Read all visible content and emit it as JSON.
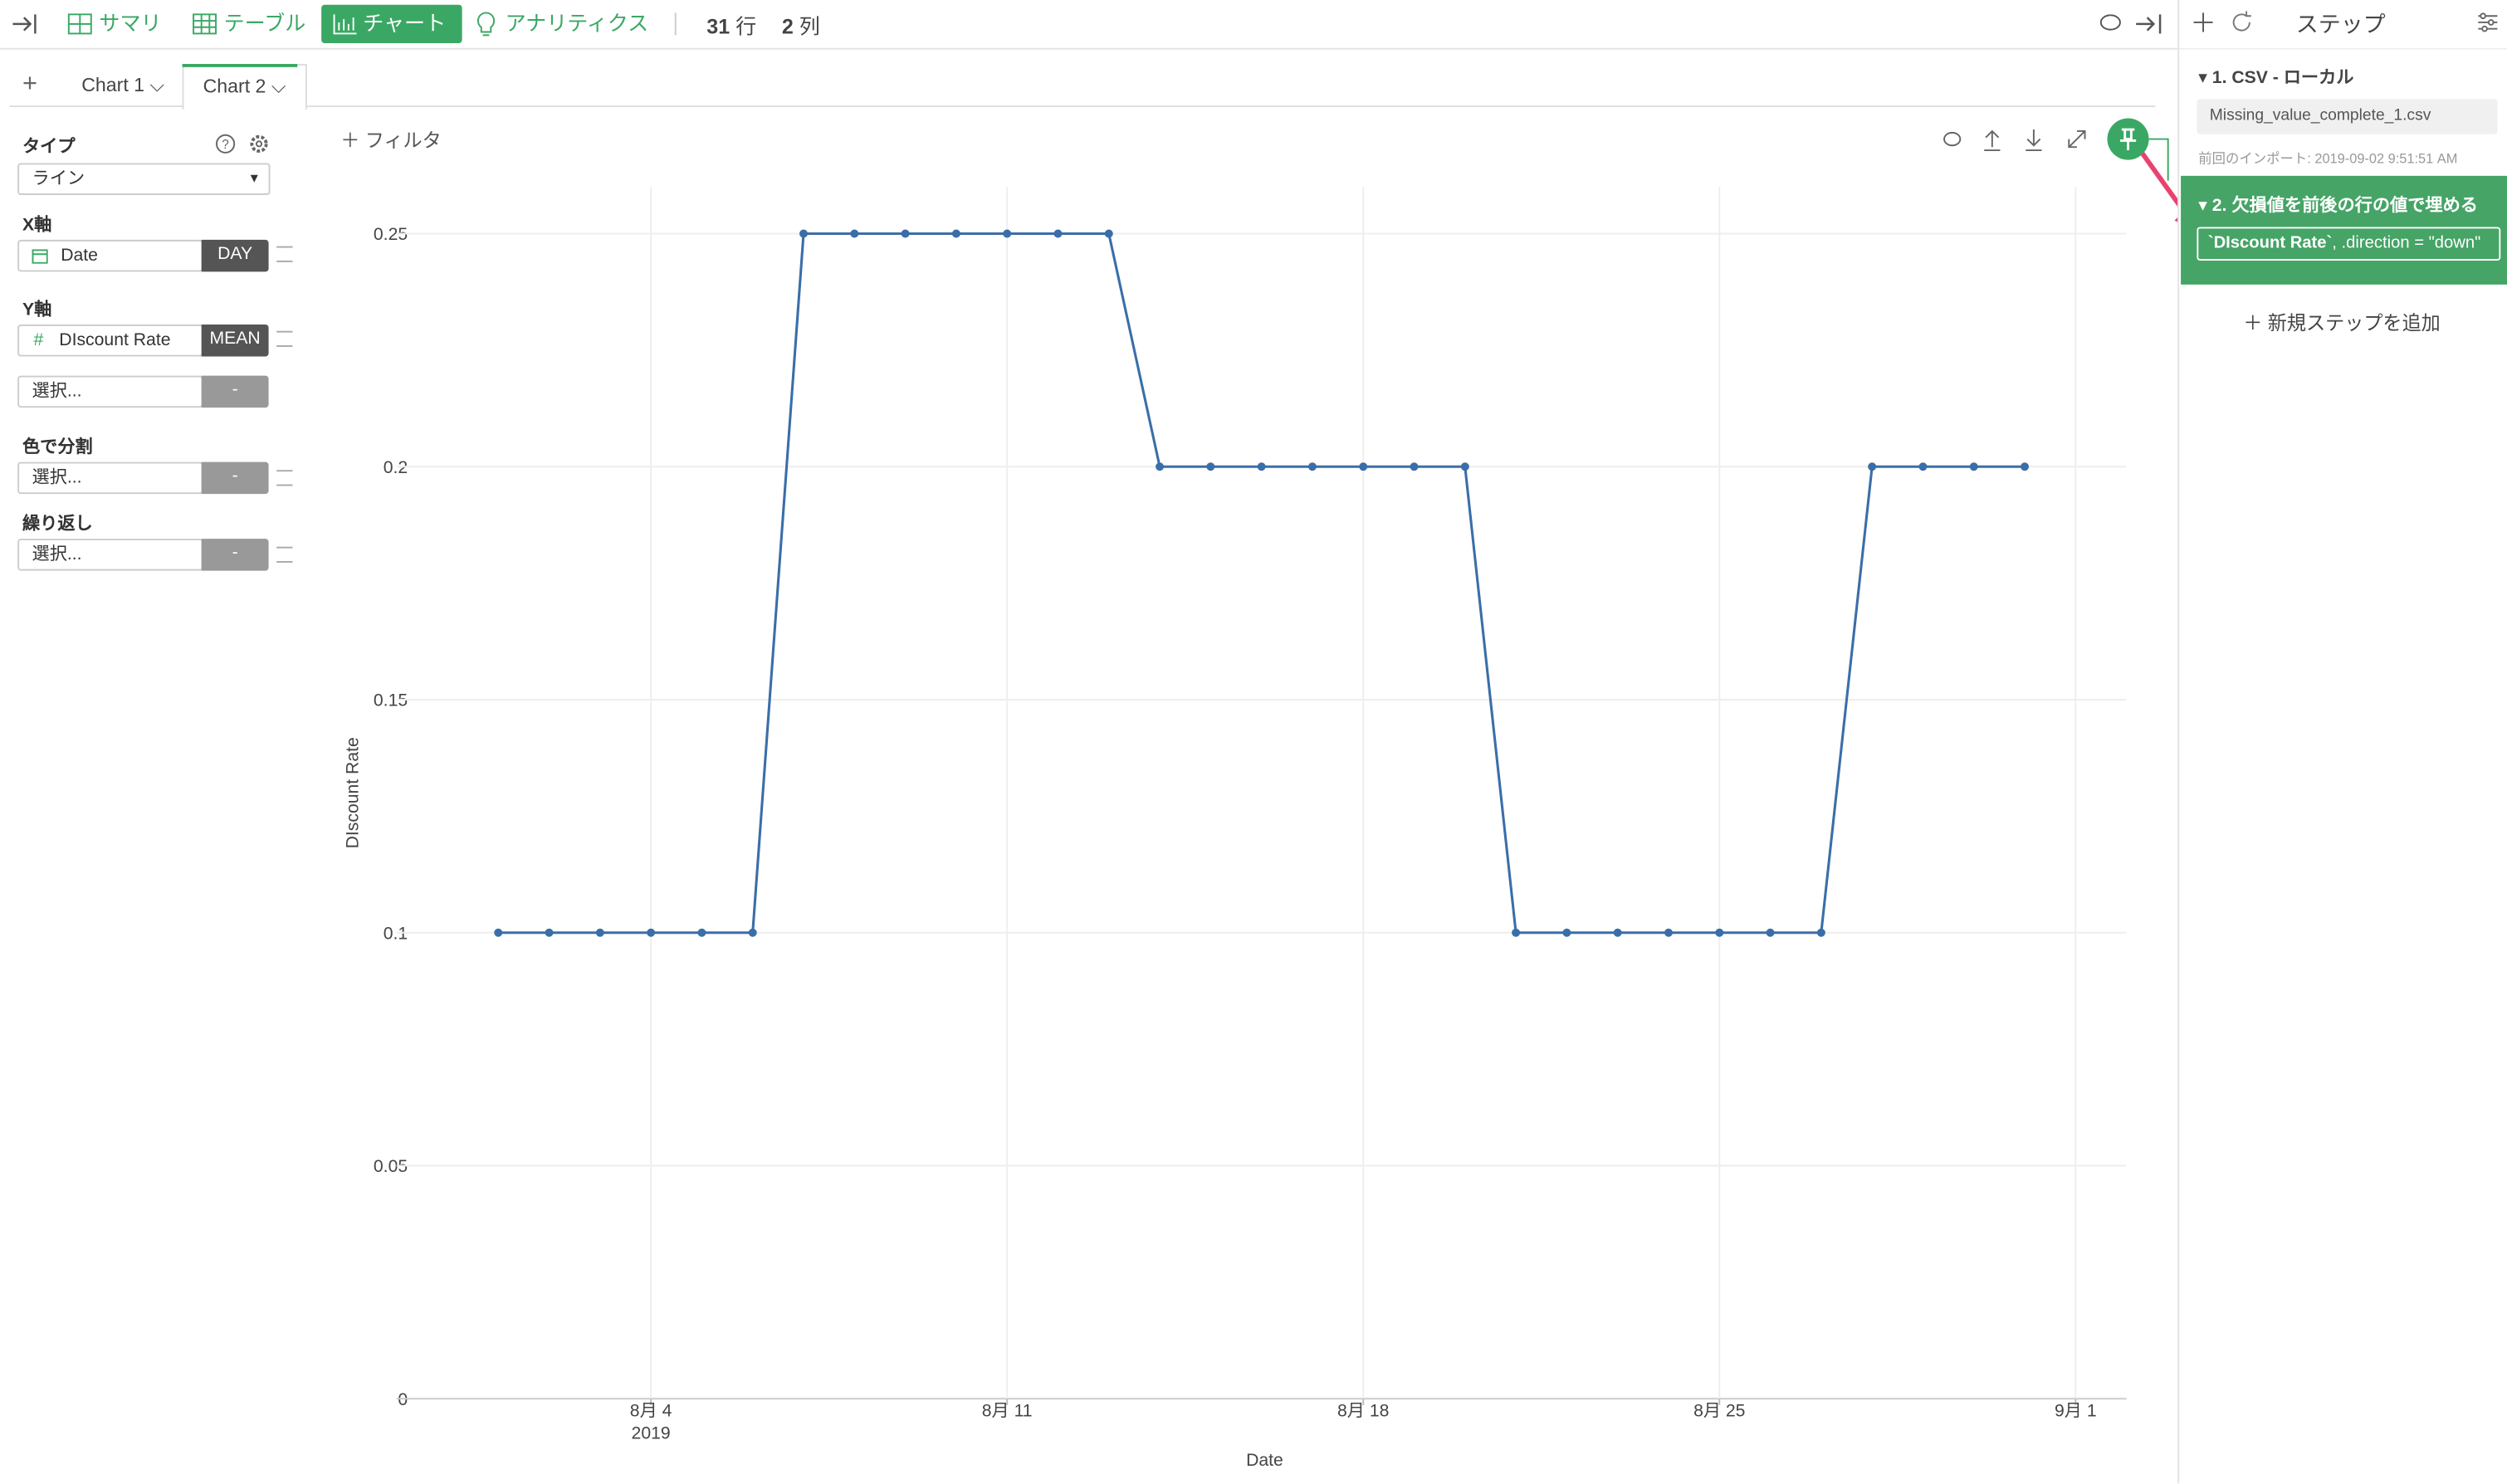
{
  "toolbar": {
    "tabs": [
      "サマリ",
      "テーブル",
      "チャート",
      "アナリティクス"
    ],
    "rows": 31,
    "rows_unit": "行",
    "cols": 2,
    "cols_unit": "列"
  },
  "chart_tabs": [
    "Chart 1",
    "Chart 2"
  ],
  "config": {
    "type_label": "タイプ",
    "type_value": "ライン",
    "x_label": "X軸",
    "x_field": "Date",
    "x_agg": "DAY",
    "y_label": "Y軸",
    "y_field": "DIscount Rate",
    "y_agg": "MEAN",
    "placeholder": "選択...",
    "dash": "-",
    "color_label": "色で分割",
    "repeat_label": "繰り返し"
  },
  "filter": "フィルタ",
  "chart_data": {
    "type": "line",
    "x_title": "Date",
    "y_title": "DIscount Rate",
    "x": [
      "2019-08-01",
      "2019-08-02",
      "2019-08-03",
      "2019-08-04",
      "2019-08-05",
      "2019-08-06",
      "2019-08-07",
      "2019-08-08",
      "2019-08-09",
      "2019-08-10",
      "2019-08-11",
      "2019-08-12",
      "2019-08-13",
      "2019-08-14",
      "2019-08-15",
      "2019-08-16",
      "2019-08-17",
      "2019-08-18",
      "2019-08-19",
      "2019-08-20",
      "2019-08-21",
      "2019-08-22",
      "2019-08-23",
      "2019-08-24",
      "2019-08-25",
      "2019-08-26",
      "2019-08-27",
      "2019-08-28",
      "2019-08-29",
      "2019-08-30",
      "2019-08-31"
    ],
    "series": [
      {
        "color": "#3a6ea8",
        "values": [
          0.1,
          0.1,
          0.1,
          0.1,
          0.1,
          0.1,
          0.25,
          0.25,
          0.25,
          0.25,
          0.25,
          0.25,
          0.25,
          0.2,
          0.2,
          0.2,
          0.2,
          0.2,
          0.2,
          0.2,
          0.1,
          0.1,
          0.1,
          0.1,
          0.1,
          0.1,
          0.1,
          0.2,
          0.2,
          0.2,
          0.2
        ]
      }
    ],
    "xlim": [
      "2019-07-30",
      "2019-09-02"
    ],
    "xticks": [
      {
        "value": "2019-08-04",
        "label": "8月 4"
      },
      {
        "value": "2019-08-11",
        "label": "8月 11"
      },
      {
        "value": "2019-08-18",
        "label": "8月 18"
      },
      {
        "value": "2019-08-25",
        "label": "8月 25"
      },
      {
        "value": "2019-09-01",
        "label": "9月 1"
      }
    ],
    "x_year_label": "2019",
    "ylim": [
      0,
      0.26
    ],
    "yticks": [
      0,
      0.05,
      0.1,
      0.15,
      0.2,
      0.25
    ],
    "grid": true
  },
  "steps": {
    "title": "ステップ",
    "items": [
      {
        "title": "1. CSV - ローカル",
        "file": "Missing_value_complete_1.csv",
        "note": "前回のインポート: 2019-09-02 9:51:51 AM"
      },
      {
        "title": "2. 欠損値を前後の行の値で埋める",
        "code_name": "`DIscount Rate`",
        "code_rest": ", .direction = \"down\""
      }
    ],
    "add": "新規ステップを追加"
  }
}
